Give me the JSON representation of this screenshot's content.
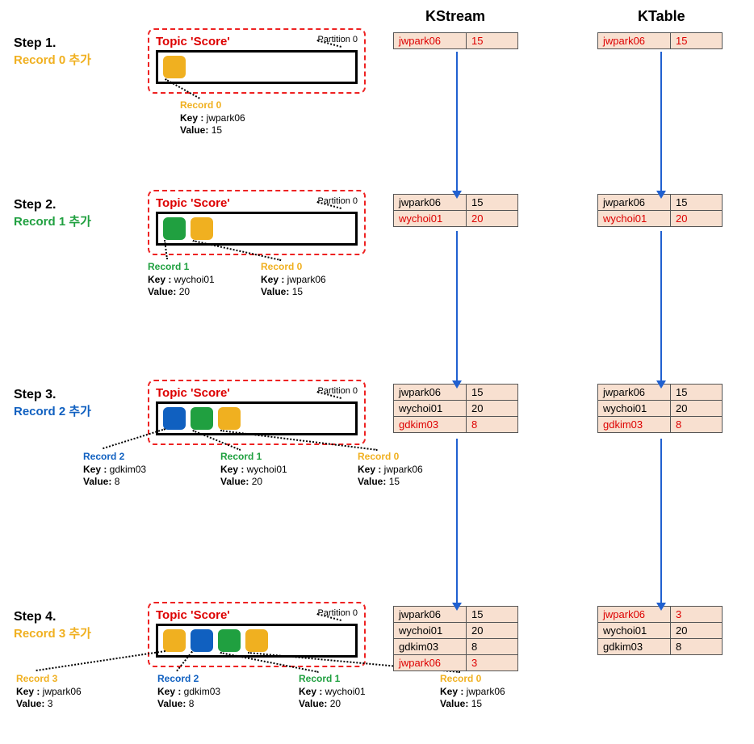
{
  "colors": {
    "record0": "#f0b020",
    "record1": "#20a040",
    "record2": "#1060c0",
    "record3": "#f0b020",
    "red": "#d00000",
    "blue": "#2060d0",
    "orange": "#f0b020",
    "green": "#20a040",
    "bluetxt": "#1060c0"
  },
  "headers": {
    "kstream": "KStream",
    "ktable": "KTable"
  },
  "topic_title": "Topic 'Score'",
  "partition_label": "Partition 0",
  "steps": [
    {
      "title": "Step 1.",
      "sub": "Record 0 추가",
      "sub_color": "#f0b020",
      "records": [
        {
          "c": "#f0b020"
        }
      ],
      "recLabels": [
        {
          "title": "Record 0",
          "color": "#f0b020",
          "key": "jwpark06",
          "value": "15"
        }
      ],
      "kstream": [
        [
          "jwpark06",
          "15",
          true
        ]
      ],
      "ktable": [
        [
          "jwpark06",
          "15",
          true
        ]
      ]
    },
    {
      "title": "Step 2.",
      "sub": "Record 1 추가",
      "sub_color": "#20a040",
      "records": [
        {
          "c": "#20a040"
        },
        {
          "c": "#f0b020"
        }
      ],
      "recLabels": [
        {
          "title": "Record 1",
          "color": "#20a040",
          "key": "wychoi01",
          "value": "20"
        },
        {
          "title": "Record 0",
          "color": "#f0b020",
          "key": "jwpark06",
          "value": "15"
        }
      ],
      "kstream": [
        [
          "jwpark06",
          "15",
          false
        ],
        [
          "wychoi01",
          "20",
          true
        ]
      ],
      "ktable": [
        [
          "jwpark06",
          "15",
          false
        ],
        [
          "wychoi01",
          "20",
          true
        ]
      ]
    },
    {
      "title": "Step 3.",
      "sub": "Record 2 추가",
      "sub_color": "#1060c0",
      "records": [
        {
          "c": "#1060c0"
        },
        {
          "c": "#20a040"
        },
        {
          "c": "#f0b020"
        }
      ],
      "recLabels": [
        {
          "title": "Record 2",
          "color": "#1060c0",
          "key": "gdkim03",
          "value": "8"
        },
        {
          "title": "Record 1",
          "color": "#20a040",
          "key": "wychoi01",
          "value": "20"
        },
        {
          "title": "Record 0",
          "color": "#f0b020",
          "key": "jwpark06",
          "value": "15"
        }
      ],
      "kstream": [
        [
          "jwpark06",
          "15",
          false
        ],
        [
          "wychoi01",
          "20",
          false
        ],
        [
          "gdkim03",
          "8",
          true
        ]
      ],
      "ktable": [
        [
          "jwpark06",
          "15",
          false
        ],
        [
          "wychoi01",
          "20",
          false
        ],
        [
          "gdkim03",
          "8",
          true
        ]
      ]
    },
    {
      "title": "Step 4.",
      "sub": "Record 3 추가",
      "sub_color": "#f0b020",
      "records": [
        {
          "c": "#f0b020"
        },
        {
          "c": "#1060c0"
        },
        {
          "c": "#20a040"
        },
        {
          "c": "#f0b020"
        }
      ],
      "recLabels": [
        {
          "title": "Record 3",
          "color": "#f0b020",
          "key": "jwpark06",
          "value": "3"
        },
        {
          "title": "Record 2",
          "color": "#1060c0",
          "key": "gdkim03",
          "value": "8"
        },
        {
          "title": "Record 1",
          "color": "#20a040",
          "key": "wychoi01",
          "value": "20"
        },
        {
          "title": "Record 0",
          "color": "#f0b020",
          "key": "jwpark06",
          "value": "15"
        }
      ],
      "kstream": [
        [
          "jwpark06",
          "15",
          false
        ],
        [
          "wychoi01",
          "20",
          false
        ],
        [
          "gdkim03",
          "8",
          false
        ],
        [
          "jwpark06",
          "3",
          true
        ]
      ],
      "ktable": [
        [
          "jwpark06",
          "3",
          true
        ],
        [
          "wychoi01",
          "20",
          false
        ],
        [
          "gdkim03",
          "8",
          false
        ]
      ]
    }
  ],
  "layout": {
    "stepY": [
      35,
      235,
      470,
      745
    ],
    "topicX": 183,
    "kstreamX": 487,
    "ktableX": 740,
    "headerY": 10,
    "stepLabelX": 17,
    "tableW": 154
  }
}
